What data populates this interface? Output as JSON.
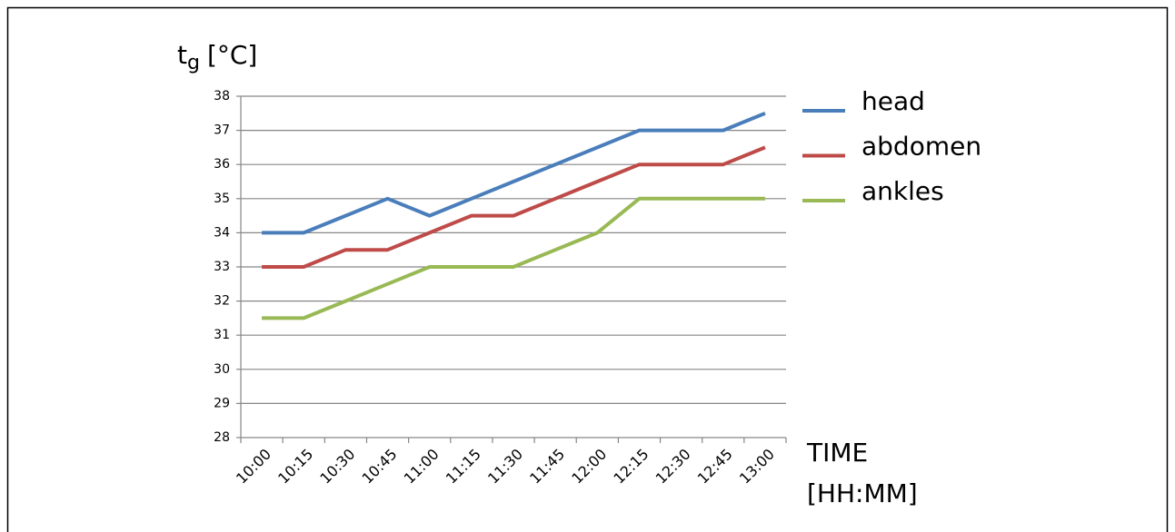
{
  "chart_data": {
    "type": "line",
    "y_label": "t",
    "y_label_subscript": "g",
    "y_label_unit": "[°C]",
    "x_label": [
      "TIME",
      "[HH:MM]"
    ],
    "categories": [
      "10:00",
      "10:15",
      "10:30",
      "10:45",
      "11:00",
      "11:15",
      "11:30",
      "11:45",
      "12:00",
      "12:15",
      "12:30",
      "12:45",
      "13:00"
    ],
    "series": [
      {
        "name": "head",
        "color": "#4a7ebb",
        "values": [
          34,
          34,
          34.5,
          35,
          34.5,
          35,
          35.5,
          36,
          36.5,
          37,
          37,
          37,
          37.5
        ]
      },
      {
        "name": "abdomen",
        "color": "#be4b48",
        "values": [
          33,
          33,
          33.5,
          33.5,
          34,
          34.5,
          34.5,
          35,
          35.5,
          36,
          36,
          36,
          36.5
        ]
      },
      {
        "name": "ankles",
        "color": "#98b954",
        "values": [
          31.5,
          31.5,
          32,
          32.5,
          33,
          33,
          33,
          33.5,
          34,
          35,
          35,
          35,
          35
        ]
      }
    ],
    "ylim": [
      28,
      38
    ],
    "yticks": [
      28,
      29,
      30,
      31,
      32,
      33,
      34,
      35,
      36,
      37,
      38
    ],
    "grid": true,
    "legend": "right"
  }
}
